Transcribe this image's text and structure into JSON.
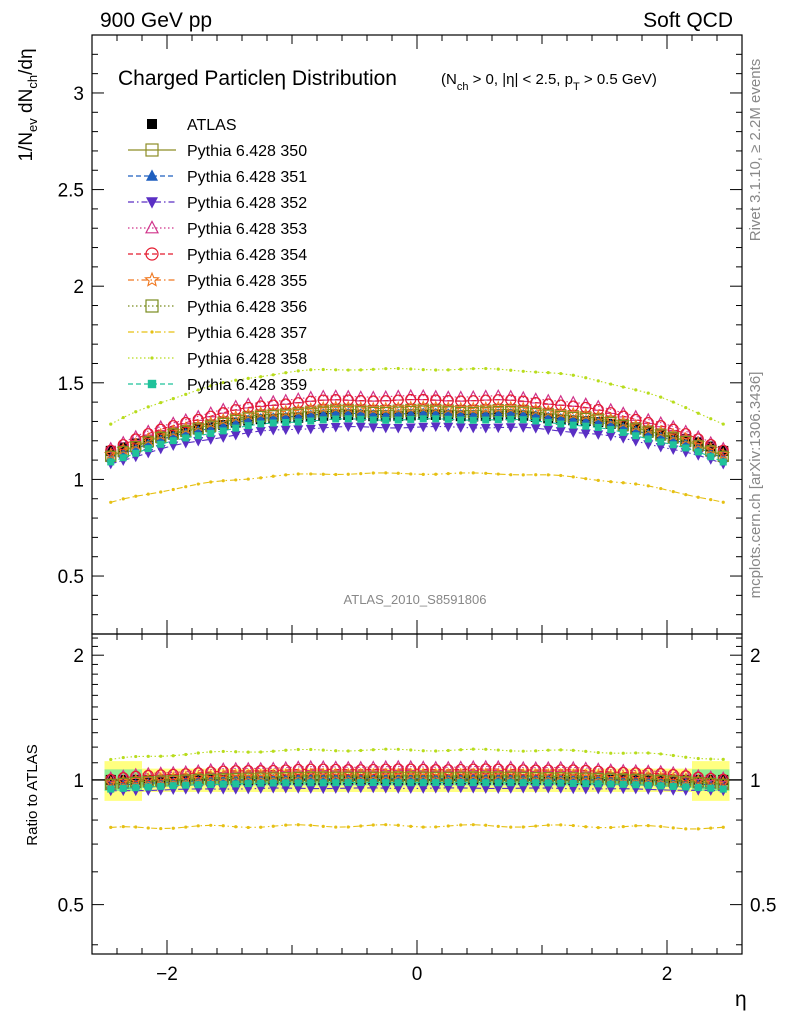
{
  "header": {
    "left": "900 GeV pp",
    "right": "Soft QCD"
  },
  "side_labels": {
    "rivet": "Rivet 3.1.10, ≥ 2.2M events",
    "mcplots": "mcplots.cern.ch [arXiv:1306.3436]"
  },
  "analysis_id": "ATLAS_2010_S8591806",
  "chart_data": [
    {
      "type": "line",
      "title_main": "Charged Particleη Distribution",
      "title_cut": "(N_ch > 0, |η| < 2.5, p_T > 0.5 GeV)",
      "ylabel": "1/N_ev dN_ch/dη",
      "xlabel": "η",
      "xlim": [
        -2.6,
        2.6
      ],
      "ylim": [
        0.2,
        3.3
      ],
      "y_ticks": [
        0.5,
        1,
        1.5,
        2,
        2.5,
        3
      ],
      "y_tick_labels": [
        "0.5",
        "1",
        "1.5",
        "2",
        "2.5",
        "3"
      ],
      "x_ticks": [
        -2,
        0,
        2
      ],
      "x_tick_labels": [
        "−2",
        "0",
        "2"
      ],
      "legend_position": "top-left",
      "x": [
        -2.45,
        -2.35,
        -2.25,
        -2.15,
        -2.05,
        -1.95,
        -1.85,
        -1.75,
        -1.65,
        -1.55,
        -1.45,
        -1.35,
        -1.25,
        -1.15,
        -1.05,
        -0.95,
        -0.85,
        -0.75,
        -0.65,
        -0.55,
        -0.45,
        -0.35,
        -0.25,
        -0.15,
        -0.05,
        0.05,
        0.15,
        0.25,
        0.35,
        0.45,
        0.55,
        0.65,
        0.75,
        0.85,
        0.95,
        1.05,
        1.15,
        1.25,
        1.35,
        1.45,
        1.55,
        1.65,
        1.75,
        1.85,
        1.95,
        2.05,
        2.15,
        2.25,
        2.35,
        2.45
      ],
      "series": [
        {
          "name": "ATLAS",
          "color": "#000000",
          "marker": "square-filled",
          "line": "none",
          "edge": 1.14,
          "center": 1.33
        },
        {
          "name": "Pythia 6.428 350",
          "color": "#8d8d26",
          "marker": "square-open",
          "line": "solid",
          "edge": 1.11,
          "center": 1.36
        },
        {
          "name": "Pythia 6.428 351",
          "color": "#1f5fbf",
          "marker": "triangle-up-filled",
          "line": "dashed",
          "edge": 1.1,
          "center": 1.34
        },
        {
          "name": "Pythia 6.428 352",
          "color": "#5a2fc4",
          "marker": "triangle-down-filled",
          "line": "dashdot",
          "edge": 1.07,
          "center": 1.27
        },
        {
          "name": "Pythia 6.428 353",
          "color": "#d0338a",
          "marker": "triangle-up-open",
          "line": "dotted",
          "edge": 1.15,
          "center": 1.43
        },
        {
          "name": "Pythia 6.428 354",
          "color": "#e41a2e",
          "marker": "circle-open",
          "line": "dashed",
          "edge": 1.14,
          "center": 1.41
        },
        {
          "name": "Pythia 6.428 355",
          "color": "#f07820",
          "marker": "star-open",
          "line": "dashdot",
          "edge": 1.12,
          "center": 1.37
        },
        {
          "name": "Pythia 6.428 356",
          "color": "#7a8c1e",
          "marker": "square-open",
          "line": "dotted",
          "edge": 1.11,
          "center": 1.35
        },
        {
          "name": "Pythia 6.428 357",
          "color": "#e6c013",
          "marker": "dot",
          "line": "dashdot",
          "edge": 0.87,
          "center": 1.03
        },
        {
          "name": "Pythia 6.428 358",
          "color": "#b8dc1c",
          "marker": "dot",
          "line": "dotted",
          "edge": 1.27,
          "center": 1.57
        },
        {
          "name": "Pythia 6.428 359",
          "color": "#1fc29a",
          "marker": "square-small-filled",
          "line": "dashed",
          "edge": 1.08,
          "center": 1.31
        }
      ]
    },
    {
      "type": "line",
      "ylabel": "Ratio to ATLAS",
      "xlabel": "η",
      "xlim": [
        -2.6,
        2.6
      ],
      "ylim": [
        0.38,
        2.25
      ],
      "y_ticks": [
        0.5,
        1,
        2
      ],
      "y_tick_labels": [
        "0.5",
        "1",
        "2"
      ],
      "reference": 1,
      "band_inner_color": "#90ee90",
      "band_outer_color": "#ffff80"
    }
  ]
}
